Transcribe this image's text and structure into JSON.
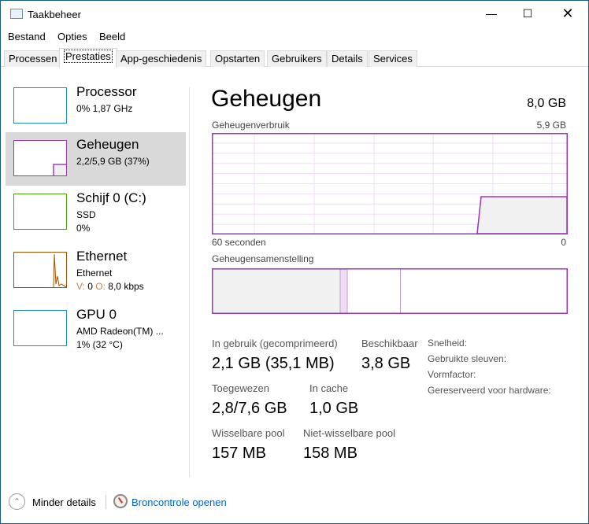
{
  "window": {
    "title": "Taakbeheer",
    "controls": [
      "minimize",
      "maximize",
      "close"
    ]
  },
  "menu": [
    "Bestand",
    "Opties",
    "Beeld"
  ],
  "tabs": [
    "Processen",
    "Prestaties",
    "App-geschiedenis",
    "Opstarten",
    "Gebruikers",
    "Details",
    "Services"
  ],
  "active_tab": "Prestaties",
  "sidebar": [
    {
      "name": "Processor",
      "line1": "0% 1,87 GHz",
      "line2": "",
      "color": "#1c8ad8"
    },
    {
      "name": "Geheugen",
      "line1": "2,2/5,9 GB (37%)",
      "line2": "",
      "color": "#9b36b7",
      "selected": true
    },
    {
      "name": "Schijf 0 (C:)",
      "line1": "SSD",
      "line2": "0%",
      "color": "#4da60c"
    },
    {
      "name": "Ethernet",
      "line1": "Ethernet",
      "line2_parts": {
        "v_label": "V:",
        "v_value": "0",
        "o_label": "O:",
        "o_value": "8,0 kbps"
      },
      "color": "#a74f01"
    },
    {
      "name": "GPU 0",
      "line1": "AMD Radeon(TM) ...",
      "line2": "1% (32 °C)",
      "color": "#1c8ad8"
    }
  ],
  "main": {
    "title": "Geheugen",
    "total": "8,0 GB",
    "usage_label": "Geheugenverbruik",
    "usage_max": "5,9 GB",
    "time_left": "60 seconden",
    "time_right": "0",
    "usage_percent": 37,
    "composition_label": "Geheugensamenstelling",
    "composition_percent": {
      "in_use": 36,
      "modified": 2,
      "standby": 15,
      "free": 47
    },
    "stats": {
      "in_use_label": "In gebruik (gecomprimeerd)",
      "in_use": "2,1 GB (35,1 MB)",
      "available_label": "Beschikbaar",
      "available": "3,8 GB",
      "committed_label": "Toegewezen",
      "committed": "2,8/7,6 GB",
      "cached_label": "In cache",
      "cached": "1,0 GB",
      "paged_label": "Wisselbare pool",
      "paged": "157 MB",
      "nonpaged_label": "Niet-wisselbare pool",
      "nonpaged": "158 MB"
    },
    "right_labels": [
      "Snelheid:",
      "Gebruikte sleuven:",
      "Vormfactor:",
      "Gereserveerd voor hardware:"
    ]
  },
  "footer": {
    "less_details": "Minder details",
    "resource_monitor": "Broncontrole openen"
  }
}
